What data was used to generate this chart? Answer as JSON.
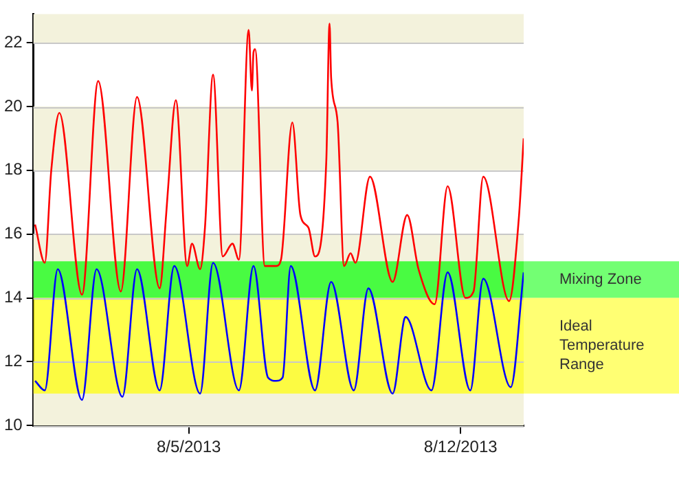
{
  "chart_data": {
    "type": "line",
    "x": [
      "2013-08-01T01:00",
      "2013-08-01T07:00",
      "2013-08-01T11:00",
      "2013-08-01T16:00",
      "2013-08-02T06:00",
      "2013-08-02T16:00",
      "2013-08-03T06:00",
      "2013-08-03T16:00",
      "2013-08-04T06:00",
      "2013-08-04T10:00",
      "2013-08-04T11:00",
      "2013-08-04T16:00",
      "2013-08-04T23:00",
      "2013-08-05T02:00",
      "2013-08-05T07:00",
      "2013-08-05T10:00",
      "2013-08-05T15:00",
      "2013-08-05T21:00",
      "2013-08-06T03:00",
      "2013-08-06T07:00",
      "2013-08-06T13:00",
      "2013-08-06T15:00",
      "2013-08-06T16:00",
      "2013-08-06T17:00",
      "2013-08-06T23:00",
      "2013-08-07T06:00",
      "2013-08-07T09:00",
      "2013-08-07T16:00",
      "2013-08-07T21:00",
      "2013-08-08T02:00",
      "2013-08-08T06:00",
      "2013-08-08T13:00",
      "2013-08-08T15:00",
      "2013-08-08T16:00",
      "2013-08-08T20:00",
      "2013-08-09T00:00",
      "2013-08-09T04:00",
      "2013-08-09T07:00",
      "2013-08-09T16:00",
      "2013-08-10T06:00",
      "2013-08-10T15:00",
      "2013-08-10T22:00",
      "2013-08-11T08:00",
      "2013-08-11T16:00",
      "2013-08-12T03:00",
      "2013-08-12T08:00",
      "2013-08-12T14:00",
      "2013-08-13T06:00",
      "2013-08-13T12:00",
      "2013-08-13T15:00"
    ],
    "series": [
      {
        "color": "#ff0000",
        "values": [
          16.3,
          15.1,
          18.0,
          19.8,
          14.1,
          20.8,
          14.2,
          20.3,
          14.3,
          16.6,
          17.3,
          20.2,
          15.0,
          15.7,
          14.9,
          16.2,
          21.0,
          15.3,
          15.7,
          15.2,
          22.4,
          20.5,
          21.7,
          21.8,
          15.0,
          15.0,
          15.2,
          19.5,
          16.6,
          16.2,
          15.3,
          18.3,
          22.6,
          20.9,
          19.5,
          15.0,
          15.4,
          15.1,
          17.8,
          14.5,
          16.6,
          14.9,
          13.8,
          17.5,
          14.0,
          14.2,
          17.8,
          13.9,
          16.5,
          19.0
        ]
      },
      {
        "color": "#0000ff",
        "x": [
          "2013-08-01T01:00",
          "2013-08-01T07:00",
          "2013-08-01T15:00",
          "2013-08-02T06:00",
          "2013-08-02T15:00",
          "2013-08-03T07:00",
          "2013-08-03T16:00",
          "2013-08-04T06:00",
          "2013-08-04T15:00",
          "2013-08-05T07:00",
          "2013-08-05T15:00",
          "2013-08-06T07:00",
          "2013-08-06T16:00",
          "2013-08-07T01:00",
          "2013-08-07T06:00",
          "2013-08-07T10:00",
          "2013-08-07T15:00",
          "2013-08-08T06:00",
          "2013-08-08T16:00",
          "2013-08-09T06:00",
          "2013-08-09T15:00",
          "2013-08-10T06:00",
          "2013-08-10T13:00",
          "2013-08-10T14:00",
          "2013-08-11T06:00",
          "2013-08-11T16:00",
          "2013-08-12T06:00",
          "2013-08-12T14:00",
          "2013-08-13T07:00",
          "2013-08-13T15:00"
        ],
        "values": [
          11.4,
          11.1,
          14.9,
          10.8,
          14.9,
          10.9,
          14.9,
          11.1,
          15.0,
          11.0,
          15.1,
          11.1,
          15.0,
          11.5,
          11.4,
          11.5,
          15.0,
          11.1,
          14.5,
          11.1,
          14.3,
          11.0,
          13.3,
          13.4,
          11.1,
          14.8,
          11.1,
          14.6,
          11.2,
          14.8
        ]
      }
    ],
    "xlim": [
      "2013-08-01T00:00",
      "2013-08-13T15:00"
    ],
    "xticks": [
      {
        "value": "2013-08-05",
        "label": "8/5/2013"
      },
      {
        "value": "2013-08-12",
        "label": "8/12/2013"
      }
    ],
    "ylim": [
      10,
      22.9
    ],
    "yticks": [
      10,
      12,
      14,
      16,
      18,
      20,
      22
    ],
    "grid": "y",
    "legend": false,
    "marker": "none",
    "line_style": "solid",
    "bands": [
      {
        "axis": "y",
        "from": 10,
        "to": 12,
        "color": "#f3f2dc"
      },
      {
        "axis": "y",
        "from": 14,
        "to": 16,
        "color": "#f3f2dc"
      },
      {
        "axis": "y",
        "from": 18,
        "to": 20,
        "color": "#f3f2dc"
      },
      {
        "axis": "y",
        "from": 22,
        "to": 22.9,
        "color": "#f3f2dc"
      },
      {
        "axis": "y",
        "from": 14,
        "to": 15.15,
        "label": "Mixing Zone",
        "color": "#00ff00"
      },
      {
        "axis": "y",
        "from": 11,
        "to": 14,
        "label": "Ideal Temperature Range",
        "color": "#ffff00"
      }
    ]
  }
}
